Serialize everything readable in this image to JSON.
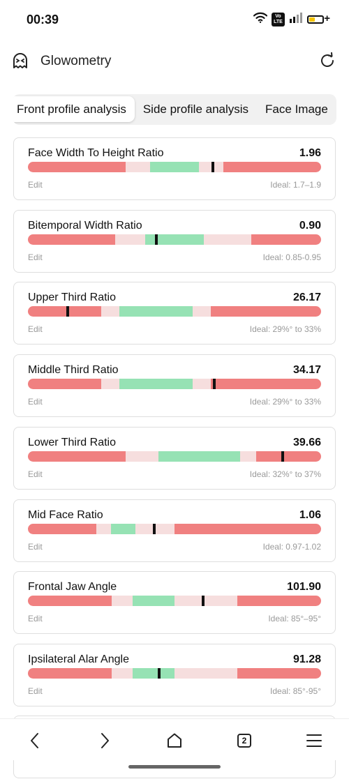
{
  "status_bar": {
    "time": "00:39",
    "volte_label": "Vo LTE",
    "icons": [
      "wifi-icon",
      "volte-icon",
      "signal-icon",
      "battery-charging-icon"
    ]
  },
  "app": {
    "title": "Glowometry",
    "logo_icon": "ghost-face-icon",
    "refresh_icon": "refresh-icon"
  },
  "tabs": [
    {
      "label": "Front profile analysis",
      "active": true
    },
    {
      "label": "Side profile analysis",
      "active": false
    },
    {
      "label": "Face Image",
      "active": false
    }
  ],
  "colors": {
    "bad": "#f08080",
    "near": "#f6dede",
    "good": "#96e2b4",
    "marker": "#111111"
  },
  "metrics": [
    {
      "name": "Face Width To Height Ratio",
      "value": "1.96",
      "edit_label": "Edit",
      "ideal": "Ideal: 1.7–1.9",
      "marker_pos": 0.63,
      "segments": [
        {
          "kind": "near",
          "from": 0.333,
          "to": 0.417
        },
        {
          "kind": "good",
          "from": 0.417,
          "to": 0.583
        },
        {
          "kind": "near",
          "from": 0.583,
          "to": 0.667
        }
      ]
    },
    {
      "name": "Bitemporal Width Ratio",
      "value": "0.90",
      "edit_label": "Edit",
      "ideal": "Ideal: 0.85-0.95",
      "marker_pos": 0.438,
      "segments": [
        {
          "kind": "near",
          "from": 0.298,
          "to": 0.4
        },
        {
          "kind": "good",
          "from": 0.4,
          "to": 0.6
        },
        {
          "kind": "near",
          "from": 0.6,
          "to": 0.762
        }
      ]
    },
    {
      "name": "Upper Third Ratio",
      "value": "26.17",
      "edit_label": "Edit",
      "ideal": "Ideal: 29%° to 33%",
      "marker_pos": 0.136,
      "segments": [
        {
          "kind": "near",
          "from": 0.25,
          "to": 0.312
        },
        {
          "kind": "good",
          "from": 0.312,
          "to": 0.562
        },
        {
          "kind": "near",
          "from": 0.562,
          "to": 0.625
        }
      ]
    },
    {
      "name": "Middle Third Ratio",
      "value": "34.17",
      "edit_label": "Edit",
      "ideal": "Ideal: 29%° to 33%",
      "marker_pos": 0.636,
      "segments": [
        {
          "kind": "near",
          "from": 0.25,
          "to": 0.312
        },
        {
          "kind": "good",
          "from": 0.312,
          "to": 0.562
        },
        {
          "kind": "near",
          "from": 0.562,
          "to": 0.625
        }
      ]
    },
    {
      "name": "Lower Third Ratio",
      "value": "39.66",
      "edit_label": "Edit",
      "ideal": "Ideal: 32%° to 37%",
      "marker_pos": 0.869,
      "segments": [
        {
          "kind": "near",
          "from": 0.333,
          "to": 0.445
        },
        {
          "kind": "good",
          "from": 0.445,
          "to": 0.724
        },
        {
          "kind": "near",
          "from": 0.724,
          "to": 0.779
        }
      ]
    },
    {
      "name": "Mid Face Ratio",
      "value": "1.06",
      "edit_label": "Edit",
      "ideal": "Ideal: 0.97-1.02",
      "marker_pos": 0.431,
      "segments": [
        {
          "kind": "near",
          "from": 0.233,
          "to": 0.283
        },
        {
          "kind": "good",
          "from": 0.283,
          "to": 0.367
        },
        {
          "kind": "near",
          "from": 0.367,
          "to": 0.5
        }
      ]
    },
    {
      "name": "Frontal Jaw Angle",
      "value": "101.90",
      "edit_label": "Edit",
      "ideal": "Ideal: 85°–95°",
      "marker_pos": 0.598,
      "segments": [
        {
          "kind": "near",
          "from": 0.286,
          "to": 0.357
        },
        {
          "kind": "good",
          "from": 0.357,
          "to": 0.5
        },
        {
          "kind": "near",
          "from": 0.5,
          "to": 0.714
        }
      ]
    },
    {
      "name": "Ipsilateral Alar Angle",
      "value": "91.28",
      "edit_label": "Edit",
      "ideal": "Ideal: 85°-95°",
      "marker_pos": 0.448,
      "segments": [
        {
          "kind": "near",
          "from": 0.286,
          "to": 0.357
        },
        {
          "kind": "good",
          "from": 0.357,
          "to": 0.5
        },
        {
          "kind": "near",
          "from": 0.5,
          "to": 0.714
        }
      ]
    }
  ],
  "bottom_nav": {
    "items": [
      "back-icon",
      "forward-icon",
      "home-icon",
      "tabs-icon",
      "menu-icon"
    ],
    "tab_count": "2"
  }
}
